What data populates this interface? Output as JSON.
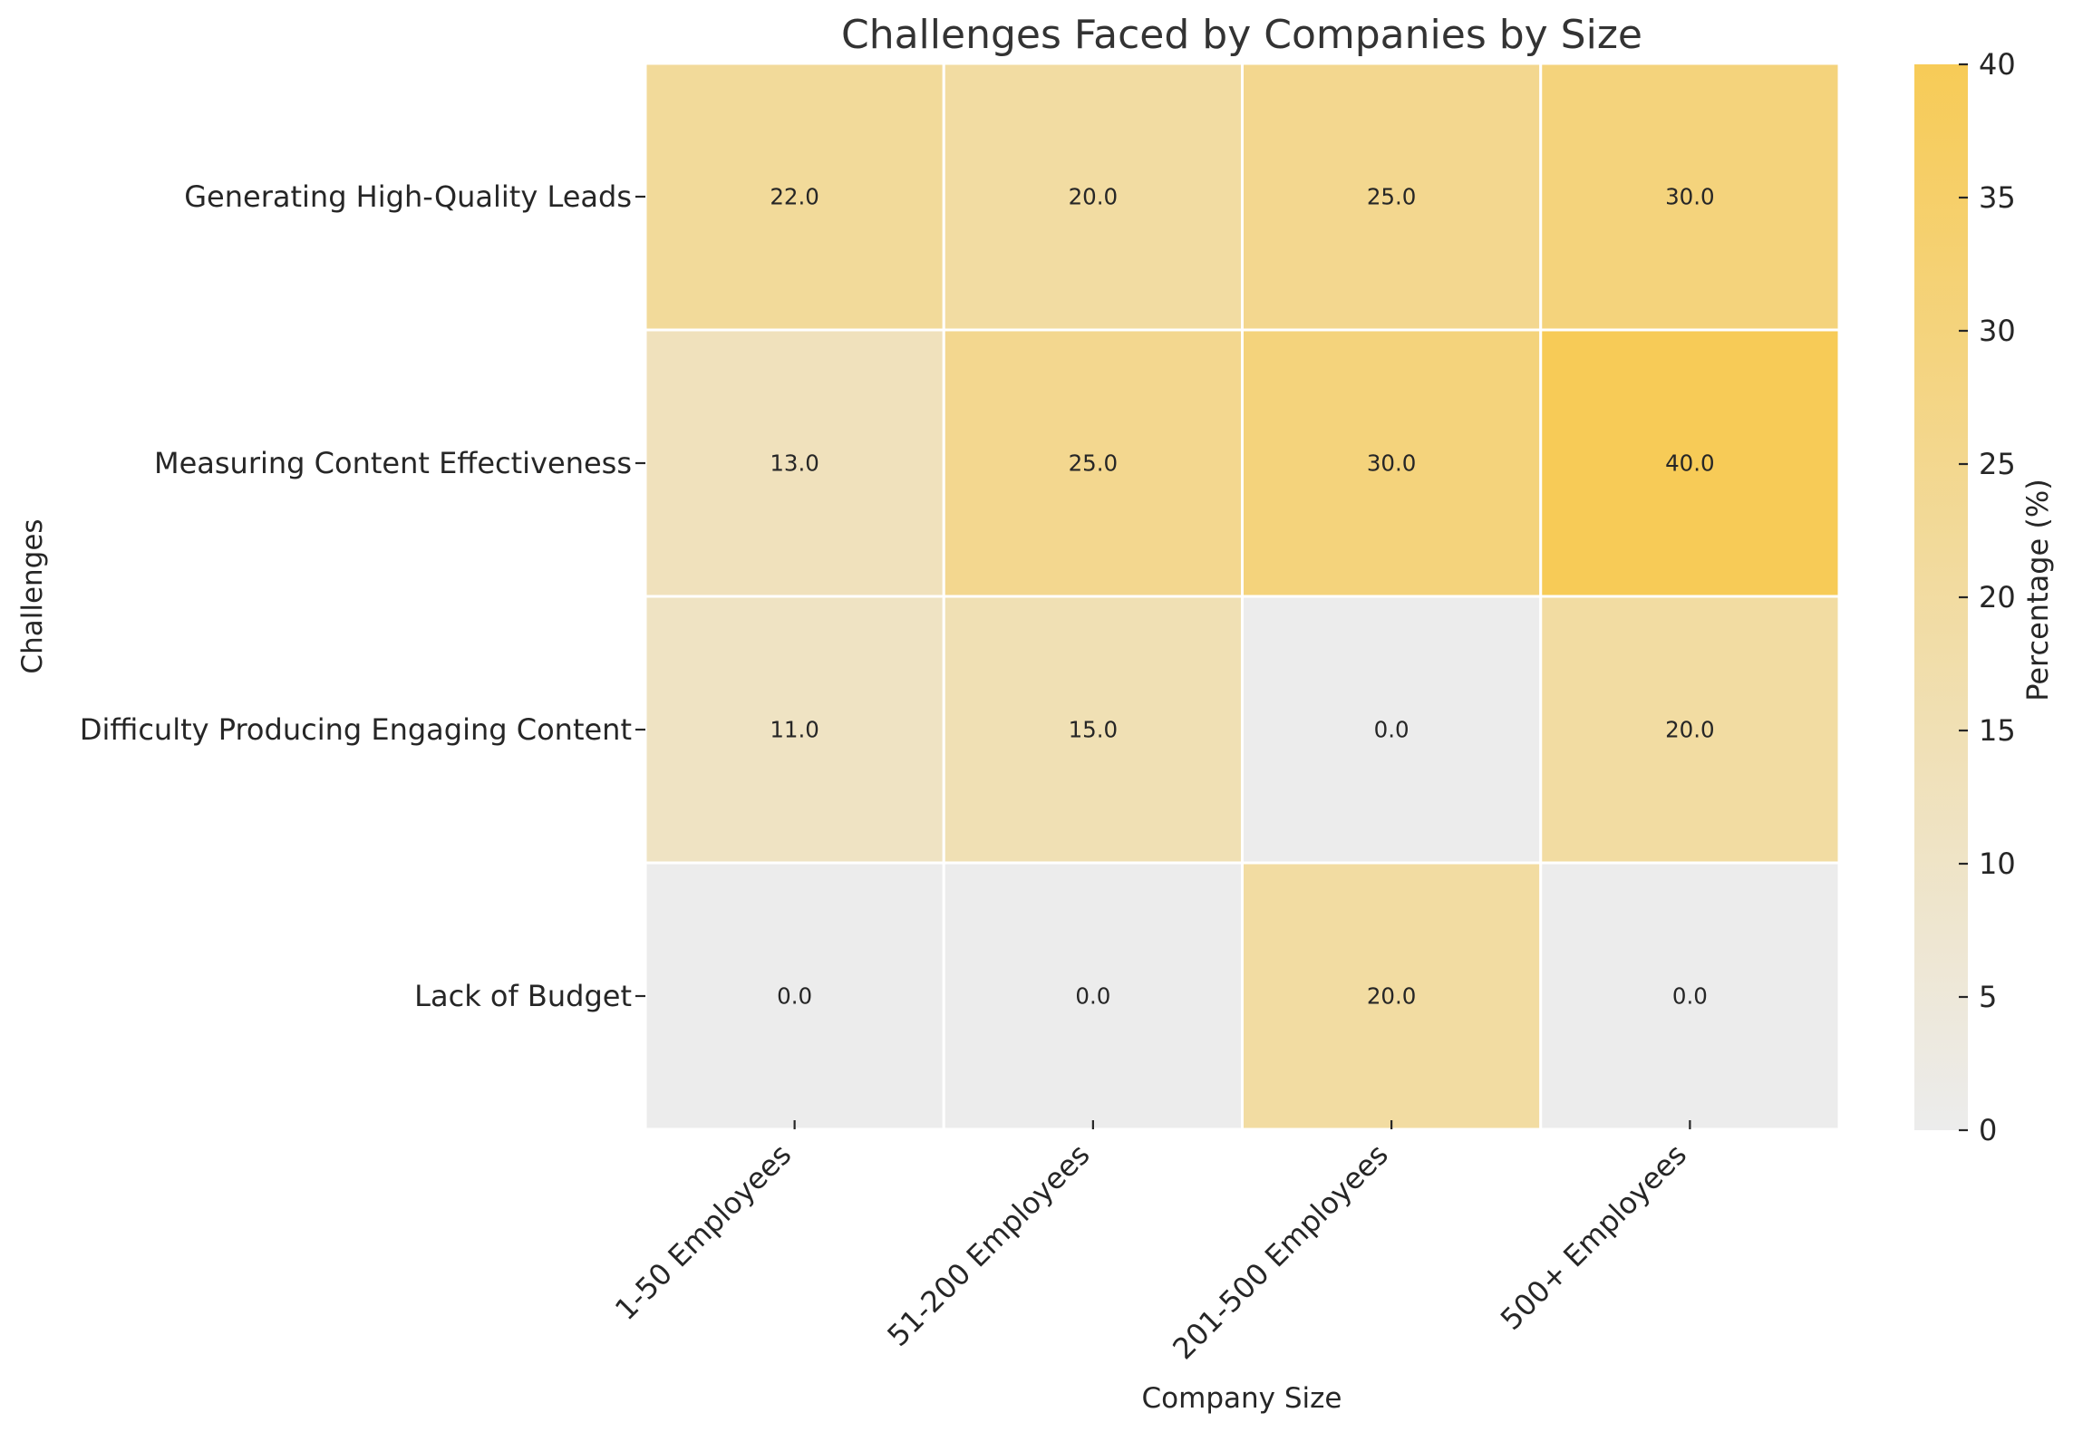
{
  "chart_data": {
    "type": "heatmap",
    "title": "Challenges Faced by Companies by Size",
    "xlabel": "Company Size",
    "ylabel": "Challenges",
    "x_categories": [
      "1-50 Employees",
      "51-200 Employees",
      "201-500 Employees",
      "500+ Employees"
    ],
    "y_categories": [
      "Generating High-Quality Leads",
      "Measuring Content Effectiveness",
      "Difficulty Producing Engaging Content",
      "Lack of Budget"
    ],
    "values": [
      [
        22.0,
        20.0,
        25.0,
        30.0
      ],
      [
        13.0,
        25.0,
        30.0,
        40.0
      ],
      [
        11.0,
        15.0,
        0.0,
        20.0
      ],
      [
        0.0,
        0.0,
        20.0,
        0.0
      ]
    ],
    "annotation_format": "0.0",
    "colorbar": {
      "label": "Percentage (%)",
      "range": [
        0,
        40
      ],
      "ticks": [
        0,
        5,
        10,
        15,
        20,
        25,
        30,
        35,
        40
      ],
      "color_low": "#ececec",
      "color_high": "#f7cb57"
    },
    "grid": false
  }
}
